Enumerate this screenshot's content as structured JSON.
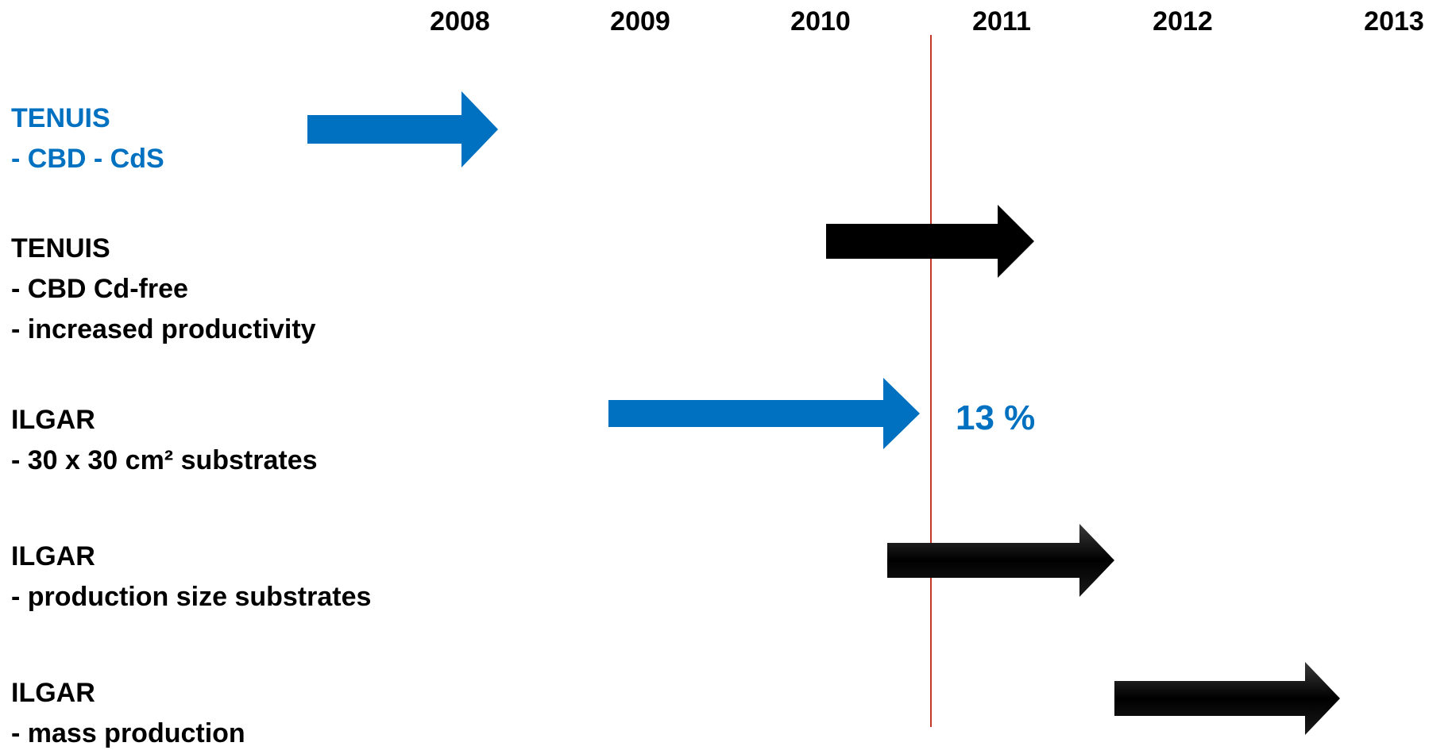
{
  "years": [
    "2008",
    "2009",
    "2010",
    "2011",
    "2012",
    "2013"
  ],
  "colors": {
    "blue": "#0070c0",
    "black": "#000000",
    "marker": "#c0392b"
  },
  "rows": [
    {
      "title": "TENUIS",
      "items": [
        "- CBD - CdS"
      ],
      "color": "#0070c0",
      "arrow_color": "#0070c0",
      "arrow_start_year": 2006.85,
      "arrow_end_year": 2008.05
    },
    {
      "title": "TENUIS",
      "items": [
        "- CBD Cd-free",
        "- increased productivity"
      ],
      "color": "#000000",
      "arrow_color": "#000000",
      "arrow_start_year": 2009.9,
      "arrow_end_year": 2011.0
    },
    {
      "title": "ILGAR",
      "items": [
        "- 30 x 30 cm² substrates"
      ],
      "color": "#000000",
      "arrow_color": "#0070c0",
      "arrow_start_year": 2008.75,
      "arrow_end_year": 2010.42,
      "note": "13 %",
      "note_color": "#0070c0"
    },
    {
      "title": "ILGAR",
      "items": [
        "- production size substrates"
      ],
      "color": "#000000",
      "arrow_color": "#000000",
      "arrow_start_year": 2010.23,
      "arrow_end_year": 2011.45
    },
    {
      "title": "ILGAR",
      "items": [
        "- mass production"
      ],
      "color": "#000000",
      "arrow_color": "#000000",
      "arrow_start_year": 2011.48,
      "arrow_end_year": 2012.7
    }
  ],
  "marker_year": 2010.48
}
